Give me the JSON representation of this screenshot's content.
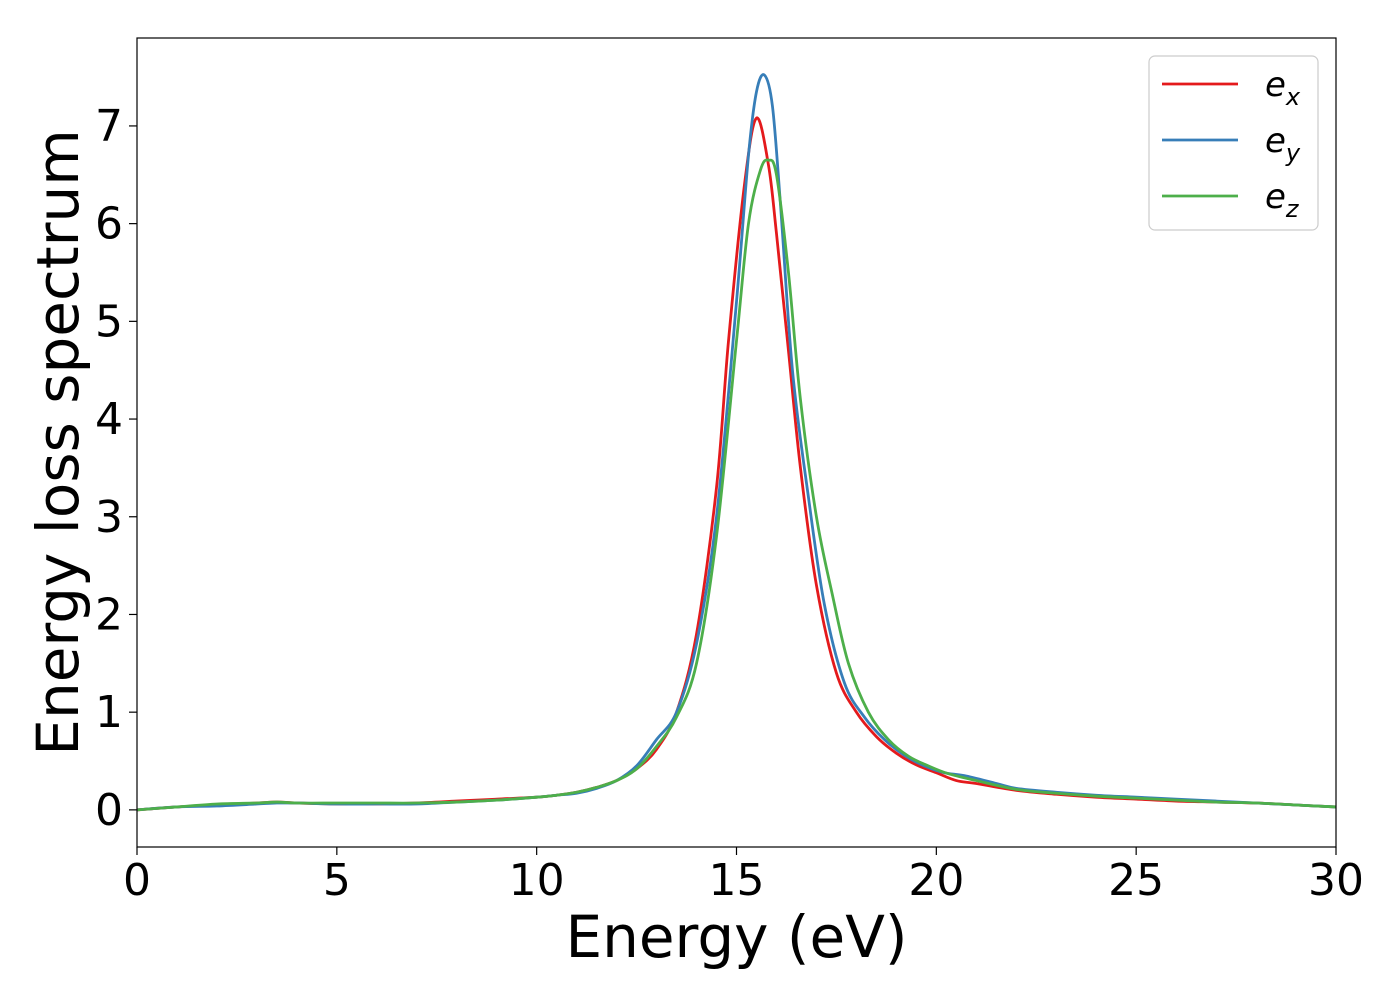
{
  "chart_data": {
    "type": "line",
    "title": "",
    "xlabel": "Energy (eV)",
    "ylabel": "Energy loss spectrum",
    "xlim": [
      0,
      30
    ],
    "ylim": [
      -0.38,
      7.9
    ],
    "xticks": [
      0,
      5,
      10,
      15,
      20,
      25,
      30
    ],
    "yticks": [
      0,
      1,
      2,
      3,
      4,
      5,
      6,
      7
    ],
    "grid": false,
    "legend": "top-right",
    "series": [
      {
        "name": "e",
        "subscript": "x",
        "color": "#e41a1c",
        "x": [
          0,
          1,
          2,
          3,
          3.5,
          4,
          5,
          6,
          7,
          8,
          9,
          10,
          10.5,
          11,
          11.5,
          12,
          12.5,
          13,
          13.5,
          14,
          14.5,
          14.8,
          15.2,
          15.5,
          15.8,
          16,
          16.3,
          16.6,
          17,
          17.5,
          18,
          18.5,
          19,
          19.5,
          20,
          20.5,
          21,
          22,
          23,
          24,
          25,
          26,
          27,
          28,
          29,
          30
        ],
        "y": [
          0,
          0.03,
          0.05,
          0.07,
          0.08,
          0.07,
          0.06,
          0.06,
          0.07,
          0.09,
          0.11,
          0.13,
          0.15,
          0.18,
          0.23,
          0.3,
          0.42,
          0.62,
          1.0,
          1.8,
          3.3,
          4.8,
          6.4,
          7.08,
          6.6,
          5.9,
          4.7,
          3.5,
          2.3,
          1.4,
          1.0,
          0.75,
          0.58,
          0.46,
          0.38,
          0.3,
          0.27,
          0.2,
          0.16,
          0.13,
          0.11,
          0.09,
          0.08,
          0.07,
          0.05,
          0.03
        ]
      },
      {
        "name": "e",
        "subscript": "y",
        "color": "#377eb8",
        "x": [
          0,
          1,
          2,
          3,
          3.5,
          4,
          5,
          6,
          7,
          8,
          9,
          10,
          10.5,
          11,
          11.5,
          12,
          12.5,
          13,
          13.5,
          14,
          14.5,
          15,
          15.3,
          15.5,
          15.7,
          15.9,
          16.1,
          16.4,
          16.8,
          17.2,
          17.7,
          18.2,
          18.7,
          19.2,
          19.7,
          20.2,
          20.7,
          21.5,
          22,
          23,
          24,
          25,
          26,
          27,
          28,
          29,
          30
        ],
        "y": [
          0,
          0.03,
          0.04,
          0.06,
          0.07,
          0.07,
          0.06,
          0.06,
          0.06,
          0.08,
          0.1,
          0.13,
          0.15,
          0.17,
          0.22,
          0.3,
          0.45,
          0.72,
          1.0,
          1.7,
          3.0,
          5.2,
          6.7,
          7.35,
          7.52,
          7.2,
          6.2,
          4.5,
          3.2,
          2.1,
          1.3,
          0.95,
          0.72,
          0.56,
          0.45,
          0.38,
          0.35,
          0.27,
          0.22,
          0.18,
          0.15,
          0.13,
          0.11,
          0.09,
          0.07,
          0.05,
          0.03
        ]
      },
      {
        "name": "e",
        "subscript": "z",
        "color": "#4daf4a",
        "x": [
          0,
          1,
          2,
          3,
          3.5,
          4,
          5,
          6,
          7,
          8,
          9,
          10,
          10.5,
          11,
          11.5,
          12,
          12.5,
          13,
          13.5,
          14,
          14.5,
          15,
          15.3,
          15.6,
          15.8,
          16,
          16.3,
          16.6,
          17,
          17.4,
          17.8,
          18.3,
          18.8,
          19.3,
          19.8,
          20.3,
          21,
          22,
          23,
          24,
          25,
          26,
          27,
          28,
          29,
          30
        ],
        "y": [
          0,
          0.03,
          0.06,
          0.07,
          0.08,
          0.07,
          0.07,
          0.07,
          0.07,
          0.08,
          0.1,
          0.13,
          0.15,
          0.18,
          0.23,
          0.3,
          0.42,
          0.65,
          0.95,
          1.5,
          2.8,
          4.8,
          6.0,
          6.55,
          6.65,
          6.5,
          5.5,
          4.2,
          3.0,
          2.2,
          1.5,
          1.0,
          0.72,
          0.55,
          0.45,
          0.37,
          0.3,
          0.21,
          0.17,
          0.14,
          0.12,
          0.1,
          0.08,
          0.07,
          0.05,
          0.03
        ]
      }
    ]
  }
}
